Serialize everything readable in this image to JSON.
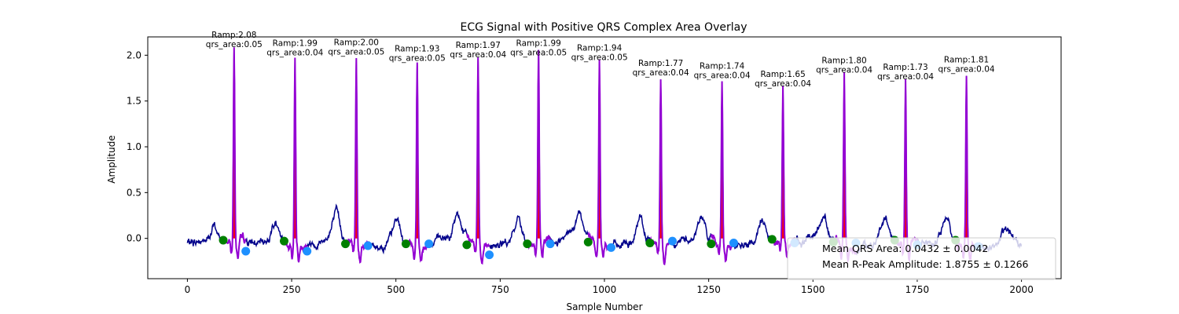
{
  "chart_data": {
    "type": "line",
    "title": "ECG Signal with Positive QRS Complex Area Overlay",
    "xlabel": "Sample Number",
    "ylabel": "Amplitude",
    "xlim": [
      -95,
      2095
    ],
    "ylim": [
      -0.44,
      2.2
    ],
    "xticks": [
      0,
      250,
      500,
      750,
      1000,
      1250,
      1500,
      1750,
      2000
    ],
    "yticks": [
      0.0,
      0.5,
      1.0,
      1.5,
      2.0
    ],
    "grid": false,
    "colors": {
      "signal": "#00008b",
      "qrs_line": "#9400d3",
      "qrs_fill": "#ff0000",
      "onset_marker": "#008000",
      "offset_marker": "#1e90ff"
    },
    "beats": [
      {
        "r_x": 112,
        "ramp": 2.08,
        "label_ramp": "Ramp:2.08",
        "label_area": "qrs_area:0.05",
        "q_x": 86,
        "q_y": -0.02,
        "s_x": 140,
        "s_y": -0.14
      },
      {
        "r_x": 258,
        "ramp": 1.99,
        "label_ramp": "Ramp:1.99",
        "label_area": "qrs_area:0.04",
        "q_x": 232,
        "q_y": -0.03,
        "s_x": 287,
        "s_y": -0.14
      },
      {
        "r_x": 405,
        "ramp": 2.0,
        "label_ramp": "Ramp:2.00",
        "label_area": "qrs_area:0.05",
        "q_x": 379,
        "q_y": -0.06,
        "s_x": 433,
        "s_y": -0.08
      },
      {
        "r_x": 551,
        "ramp": 1.93,
        "label_ramp": "Ramp:1.93",
        "label_area": "qrs_area:0.05",
        "q_x": 524,
        "q_y": -0.06,
        "s_x": 579,
        "s_y": -0.06
      },
      {
        "r_x": 697,
        "ramp": 1.97,
        "label_ramp": "Ramp:1.97",
        "label_area": "qrs_area:0.04",
        "q_x": 670,
        "q_y": -0.07,
        "s_x": 724,
        "s_y": -0.18
      },
      {
        "r_x": 842,
        "ramp": 1.99,
        "label_ramp": "Ramp:1.99",
        "label_area": "qrs_area:0.05",
        "q_x": 815,
        "q_y": -0.06,
        "s_x": 870,
        "s_y": -0.06
      },
      {
        "r_x": 988,
        "ramp": 1.94,
        "label_ramp": "Ramp:1.94",
        "label_area": "qrs_area:0.05",
        "q_x": 961,
        "q_y": -0.04,
        "s_x": 1016,
        "s_y": -0.1
      },
      {
        "r_x": 1135,
        "ramp": 1.77,
        "label_ramp": "Ramp:1.77",
        "label_area": "qrs_area:0.04",
        "q_x": 1109,
        "q_y": -0.05,
        "s_x": 1163,
        "s_y": -0.03
      },
      {
        "r_x": 1282,
        "ramp": 1.74,
        "label_ramp": "Ramp:1.74",
        "label_area": "qrs_area:0.04",
        "q_x": 1256,
        "q_y": -0.06,
        "s_x": 1310,
        "s_y": -0.05
      },
      {
        "r_x": 1428,
        "ramp": 1.65,
        "label_ramp": "Ramp:1.65",
        "label_area": "qrs_area:0.04",
        "q_x": 1402,
        "q_y": -0.01,
        "s_x": 1456,
        "s_y": -0.05
      },
      {
        "r_x": 1575,
        "ramp": 1.8,
        "label_ramp": "Ramp:1.80",
        "label_area": "qrs_area:0.04",
        "q_x": 1549,
        "q_y": -0.04,
        "s_x": 1603,
        "s_y": -0.05
      },
      {
        "r_x": 1722,
        "ramp": 1.73,
        "label_ramp": "Ramp:1.73",
        "label_area": "qrs_area:0.04",
        "q_x": 1696,
        "q_y": -0.02,
        "s_x": 1750,
        "s_y": -0.07
      },
      {
        "r_x": 1868,
        "ramp": 1.81,
        "label_ramp": "Ramp:1.81",
        "label_area": "qrs_area:0.04",
        "q_x": 1842,
        "q_y": -0.02,
        "s_x": 1896,
        "s_y": -0.09
      }
    ],
    "legend": {
      "placement": "lower-right",
      "entries": [
        "Mean QRS Area: 0.0432 ± 0.0042",
        "Mean R-Peak Amplitude: 1.8755 ± 0.1266"
      ]
    }
  }
}
